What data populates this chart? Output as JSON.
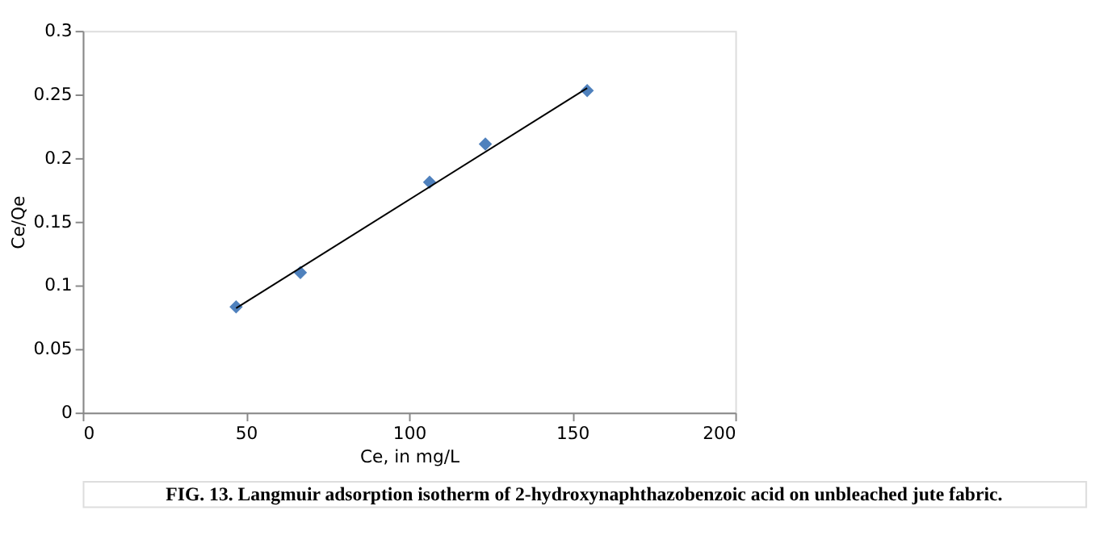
{
  "chart_data": {
    "type": "scatter",
    "xlabel": "Ce, in mg/L",
    "ylabel": "Ce/Qe",
    "grid": false,
    "xlim": [
      0,
      200
    ],
    "xticks": [
      0,
      50,
      100,
      150,
      200
    ],
    "ylim": [
      0,
      0.3
    ],
    "yticks": [
      0,
      0.05,
      0.1,
      0.15,
      0.2,
      0.25,
      0.3
    ],
    "series": [
      {
        "marker": "diamond",
        "color": "#4f81bd",
        "x": [
          47,
          66.7,
          106.3,
          123.4,
          154.6
        ],
        "values": [
          0.083,
          0.11,
          0.181,
          0.211,
          0.253
        ]
      },
      {
        "type": "line",
        "line_style": "solid",
        "color": "#000000",
        "x": [
          47,
          154.6
        ],
        "values": [
          0.082,
          0.255
        ]
      }
    ],
    "annotations": [
      "FIG. 13. Langmuir adsorption isotherm of 2-hydroxynaphthazobenzoic acid on unbleached jute fabric."
    ]
  }
}
